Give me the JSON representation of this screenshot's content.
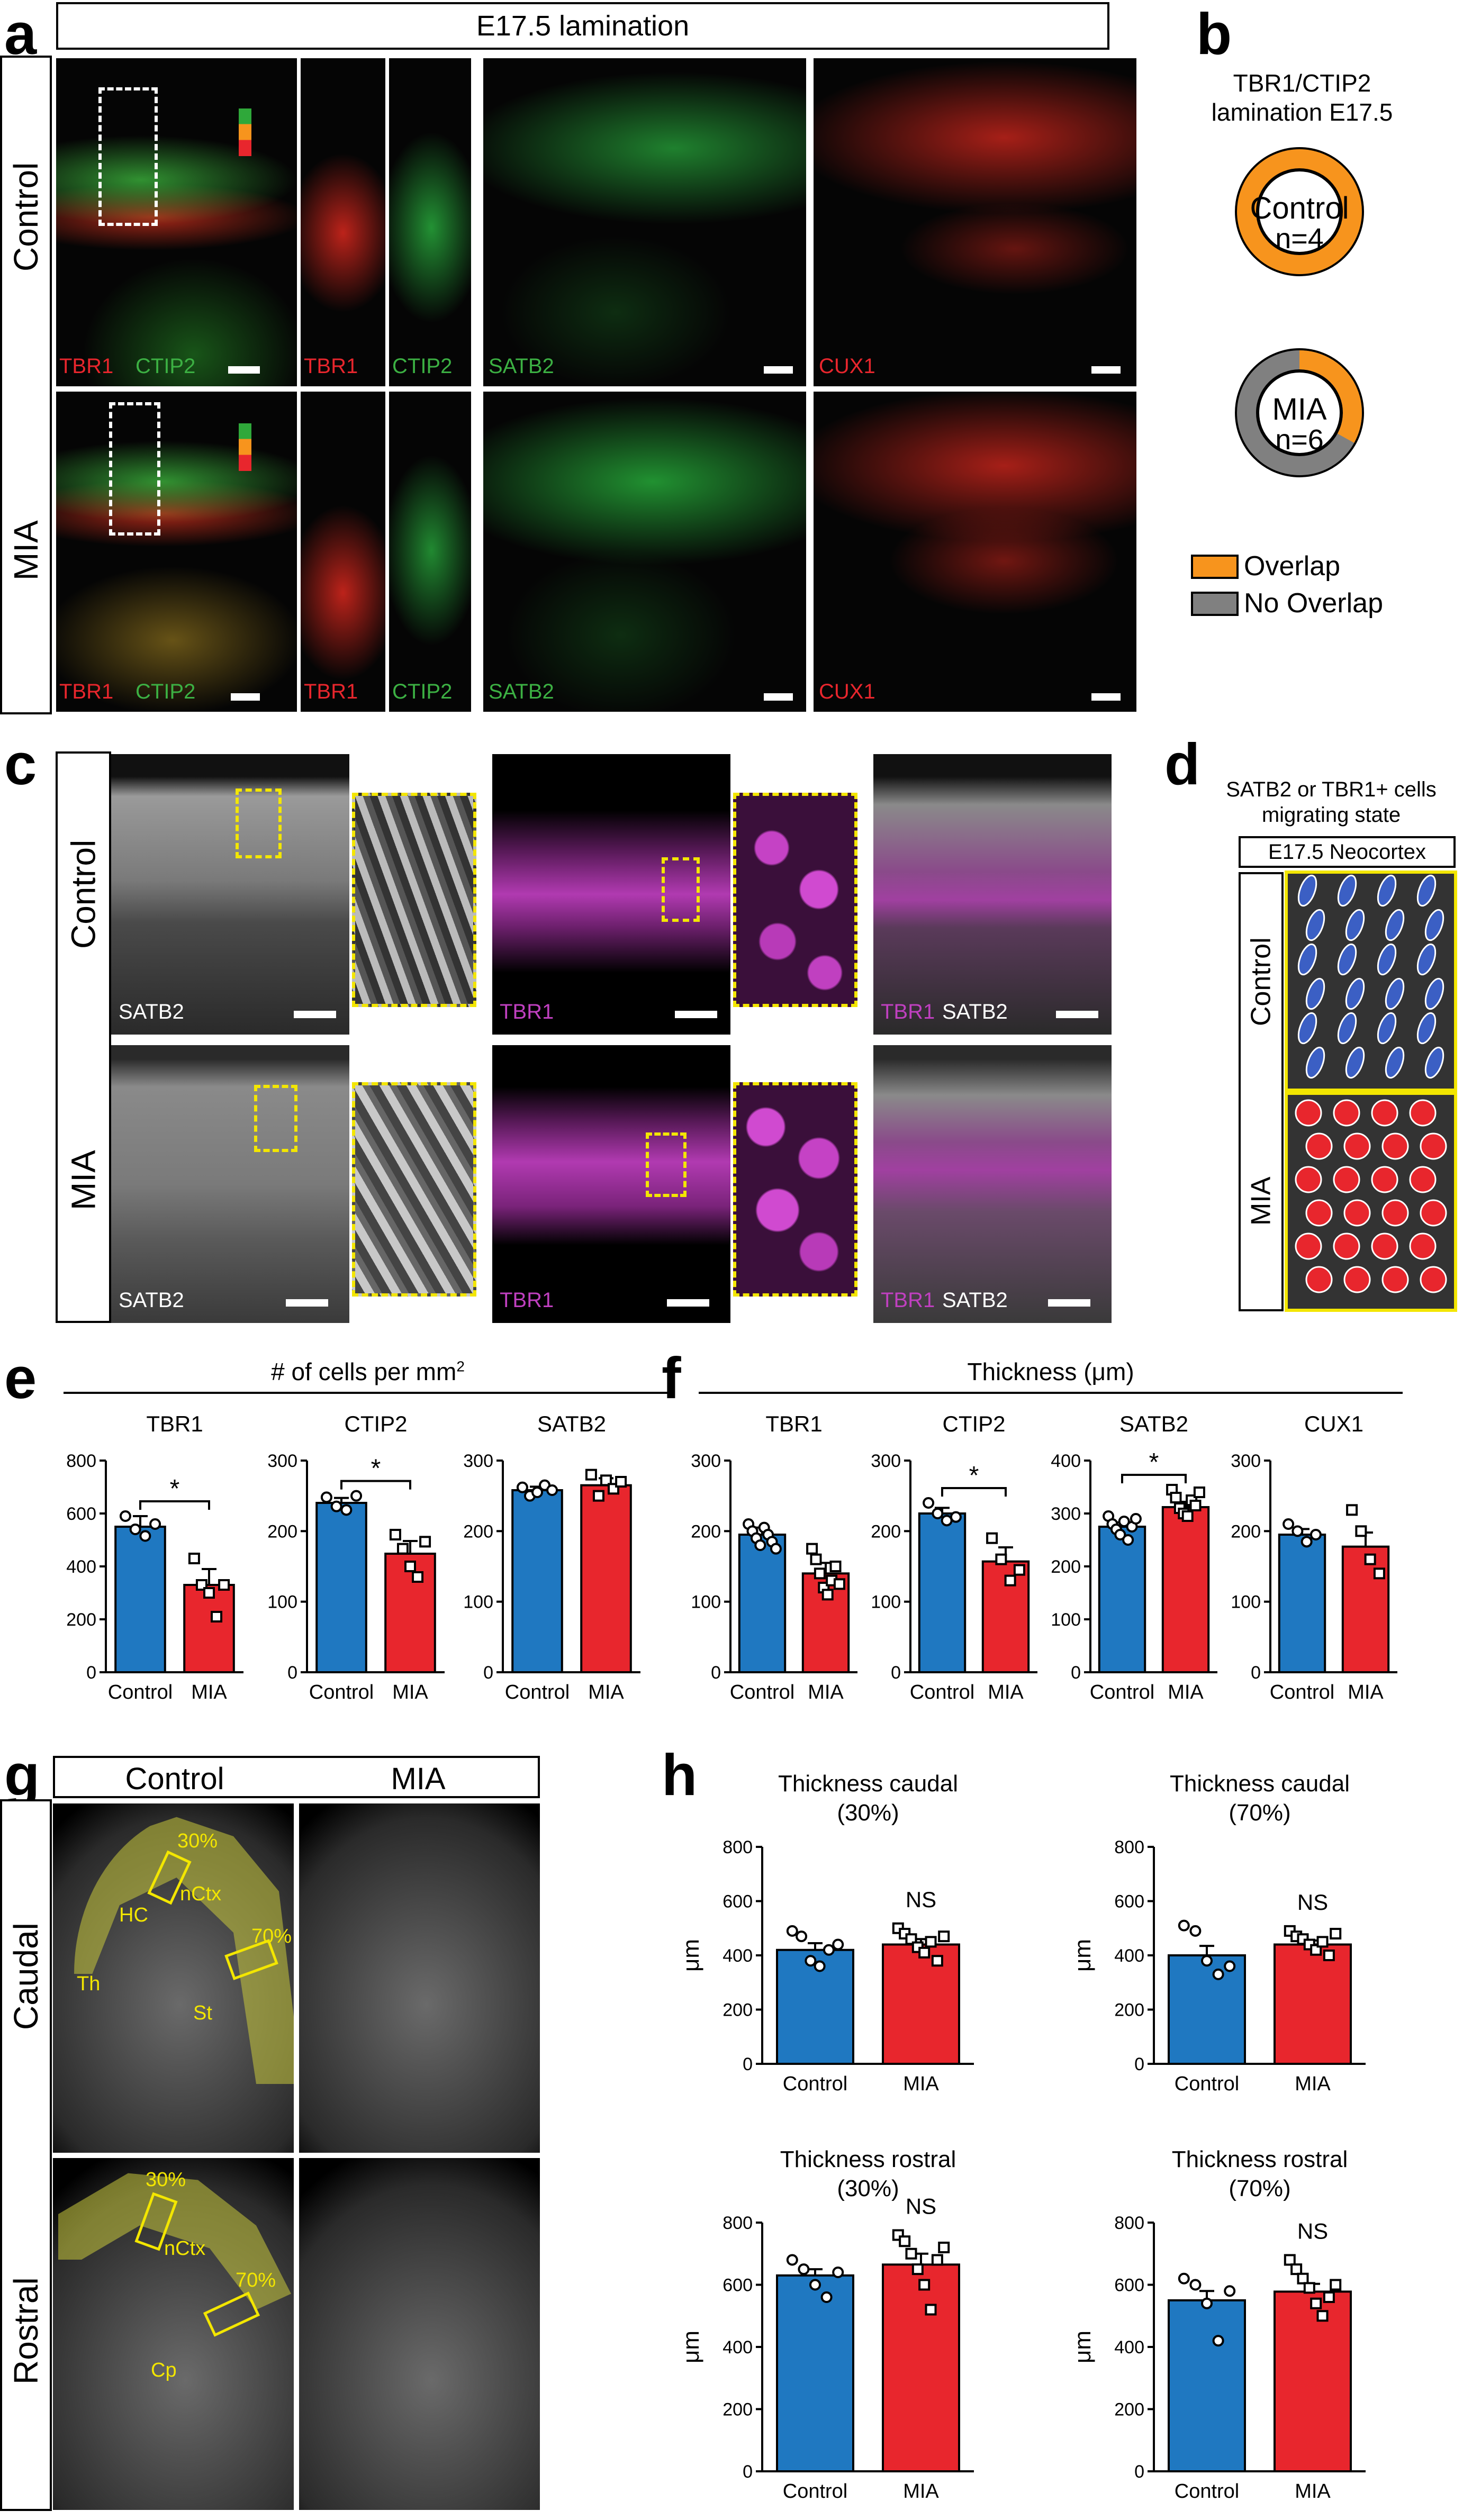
{
  "panel_letters": {
    "a": "a",
    "b": "b",
    "c": "c",
    "d": "d",
    "e": "e",
    "f": "f",
    "g": "g",
    "h": "h"
  },
  "panel_a": {
    "title": "E17.5 lamination",
    "row_labels": [
      "Control",
      "MIA"
    ],
    "control_labels": {
      "tbr1": "TBR1",
      "ctip2": "CTIP2",
      "zoom_tbr1": "TBR1",
      "zoom_ctip2": "CTIP2",
      "satb2": "SATB2",
      "cux1": "CUX1"
    },
    "mia_labels": {
      "tbr1": "TBR1",
      "ctip2": "CTIP2",
      "zoom_tbr1": "TBR1",
      "zoom_ctip2": "CTIP2",
      "satb2": "SATB2",
      "cux1": "CUX1"
    }
  },
  "panel_b": {
    "title_line1": "TBR1/CTIP2",
    "title_line2": "lamination E17.5",
    "control_label": "Control",
    "control_n": "n=4",
    "mia_label": "MIA",
    "mia_n": "n=6",
    "legend": [
      {
        "label": "Overlap",
        "color": "#F7941D"
      },
      {
        "label": "No Overlap",
        "color": "#808080"
      }
    ],
    "control_overlap_fraction": 1.0,
    "mia_overlap_fraction": 0.33
  },
  "panel_c": {
    "row_labels": [
      "Control",
      "MIA"
    ],
    "control_labels": {
      "satb2": "SATB2",
      "tbr1": "TBR1",
      "merge_tbr1": "TBR1",
      "merge_satb2": "SATB2"
    },
    "mia_labels": {
      "satb2": "SATB2",
      "tbr1": "TBR1",
      "merge_tbr1": "TBR1",
      "merge_satb2": "SATB2"
    }
  },
  "panel_d": {
    "title_line1": "SATB2 or TBR1+ cells",
    "title_line2": "migrating state",
    "subtitle": "E17.5 Neocortex",
    "row_labels": [
      "Control",
      "MIA"
    ]
  },
  "panel_g": {
    "col_labels": [
      "Control",
      "MIA"
    ],
    "row_labels": [
      "Caudal",
      "Rostral"
    ],
    "caudal_annotations": {
      "p30": "30%",
      "p70": "70%",
      "nctx": "nCtx",
      "hc": "HC",
      "th": "Th",
      "st": "St"
    },
    "rostral_annotations": {
      "p30": "30%",
      "p70": "70%",
      "nctx": "nCtx",
      "cp": "Cp"
    }
  },
  "colors": {
    "control": "#1F78C1",
    "mia": "#E8262D",
    "overlap": "#F7941D",
    "no_overlap": "#808080"
  },
  "chart_data": [
    {
      "id": "e_tbr1",
      "type": "bar",
      "group_title": "# of cells per mm",
      "group_title_sup": "2",
      "title": "TBR1",
      "categories": [
        "Control",
        "MIA"
      ],
      "values": [
        550,
        330
      ],
      "errors": [
        40,
        60
      ],
      "ylim": [
        0,
        800
      ],
      "yticks": [
        0,
        200,
        400,
        600,
        800
      ],
      "significance": "*",
      "points": [
        [
          590,
          540,
          515,
          560
        ],
        [
          430,
          330,
          300,
          210,
          330
        ]
      ]
    },
    {
      "id": "e_ctip2",
      "type": "bar",
      "title": "CTIP2",
      "categories": [
        "Control",
        "MIA"
      ],
      "values": [
        240,
        168
      ],
      "errors": [
        7,
        18
      ],
      "ylim": [
        0,
        300
      ],
      "yticks": [
        0,
        100,
        200,
        300
      ],
      "significance": "*",
      "points": [
        [
          248,
          235,
          230,
          250
        ],
        [
          195,
          175,
          150,
          135,
          185
        ]
      ]
    },
    {
      "id": "e_satb2",
      "type": "bar",
      "title": "SATB2",
      "categories": [
        "Control",
        "MIA"
      ],
      "values": [
        258,
        265
      ],
      "errors": [
        5,
        10
      ],
      "ylim": [
        0,
        300
      ],
      "yticks": [
        0,
        100,
        200,
        300
      ],
      "significance": "",
      "points": [
        [
          262,
          250,
          255,
          265,
          258
        ],
        [
          280,
          250,
          272,
          260,
          270
        ]
      ]
    },
    {
      "id": "f_tbr1",
      "type": "bar",
      "group_title": "Thickness (μm)",
      "title": "TBR1",
      "categories": [
        "Control",
        "MIA"
      ],
      "values": [
        195,
        140
      ],
      "errors": [
        10,
        15
      ],
      "ylim": [
        0,
        300
      ],
      "yticks": [
        0,
        100,
        200,
        300
      ],
      "significance": "",
      "points": [
        [
          210,
          200,
          190,
          180,
          205,
          195,
          185,
          175
        ],
        [
          175,
          160,
          140,
          120,
          110,
          130,
          150,
          125
        ]
      ]
    },
    {
      "id": "f_ctip2",
      "type": "bar",
      "title": "CTIP2",
      "categories": [
        "Control",
        "MIA"
      ],
      "values": [
        225,
        157
      ],
      "errors": [
        8,
        20
      ],
      "ylim": [
        0,
        300
      ],
      "yticks": [
        0,
        100,
        200,
        300
      ],
      "significance": "*",
      "points": [
        [
          240,
          225,
          215,
          220
        ],
        [
          190,
          160,
          130,
          145
        ]
      ]
    },
    {
      "id": "f_satb2",
      "type": "bar",
      "title": "SATB2",
      "categories": [
        "Control",
        "MIA"
      ],
      "values": [
        275,
        312
      ],
      "errors": [
        8,
        10
      ],
      "ylim": [
        0,
        400
      ],
      "yticks": [
        0,
        100,
        200,
        300,
        400
      ],
      "significance": "*",
      "points": [
        [
          295,
          280,
          270,
          260,
          285,
          250,
          275,
          290
        ],
        [
          345,
          330,
          310,
          300,
          295,
          325,
          315,
          340
        ]
      ]
    },
    {
      "id": "f_cux1",
      "type": "bar",
      "title": "CUX1",
      "categories": [
        "Control",
        "MIA"
      ],
      "values": [
        195,
        178
      ],
      "errors": [
        8,
        20
      ],
      "ylim": [
        0,
        300
      ],
      "yticks": [
        0,
        100,
        200,
        300
      ],
      "significance": "",
      "points": [
        [
          210,
          200,
          185,
          195
        ],
        [
          230,
          200,
          160,
          140
        ]
      ]
    },
    {
      "id": "h_caudal30",
      "type": "bar",
      "title": "Thickness caudal",
      "subtitle": "(30%)",
      "ylabel": "μm",
      "categories": [
        "Control",
        "MIA"
      ],
      "values": [
        420,
        440
      ],
      "errors": [
        25,
        20
      ],
      "ylim": [
        0,
        800
      ],
      "yticks": [
        0,
        200,
        400,
        600,
        800
      ],
      "significance": "NS",
      "points": [
        [
          490,
          470,
          380,
          360,
          420,
          440
        ],
        [
          500,
          480,
          460,
          430,
          410,
          450,
          380,
          470
        ]
      ]
    },
    {
      "id": "h_caudal70",
      "type": "bar",
      "title": "Thickness caudal",
      "subtitle": "(70%)",
      "ylabel": "μm",
      "categories": [
        "Control",
        "MIA"
      ],
      "values": [
        400,
        440
      ],
      "errors": [
        35,
        15
      ],
      "ylim": [
        0,
        800
      ],
      "yticks": [
        0,
        200,
        400,
        600,
        800
      ],
      "significance": "NS",
      "points": [
        [
          510,
          490,
          380,
          330,
          360
        ],
        [
          490,
          470,
          460,
          440,
          420,
          450,
          400,
          480
        ]
      ]
    },
    {
      "id": "h_rostral30",
      "type": "bar",
      "title": "Thickness rostral",
      "subtitle": "(30%)",
      "ylabel": "μm",
      "categories": [
        "Control",
        "MIA"
      ],
      "values": [
        630,
        665
      ],
      "errors": [
        20,
        35
      ],
      "ylim": [
        0,
        800
      ],
      "yticks": [
        0,
        200,
        400,
        600,
        800
      ],
      "significance": "NS",
      "points": [
        [
          680,
          650,
          600,
          560,
          640
        ],
        [
          760,
          740,
          700,
          650,
          600,
          520,
          680,
          720
        ]
      ]
    },
    {
      "id": "h_rostral70",
      "type": "bar",
      "title": "Thickness rostral",
      "subtitle": "(70%)",
      "ylabel": "μm",
      "categories": [
        "Control",
        "MIA"
      ],
      "values": [
        550,
        578
      ],
      "errors": [
        30,
        25
      ],
      "ylim": [
        0,
        800
      ],
      "yticks": [
        0,
        200,
        400,
        600,
        800
      ],
      "significance": "NS",
      "points": [
        [
          620,
          600,
          540,
          420,
          580
        ],
        [
          680,
          650,
          620,
          590,
          540,
          500,
          560,
          600
        ]
      ]
    }
  ]
}
